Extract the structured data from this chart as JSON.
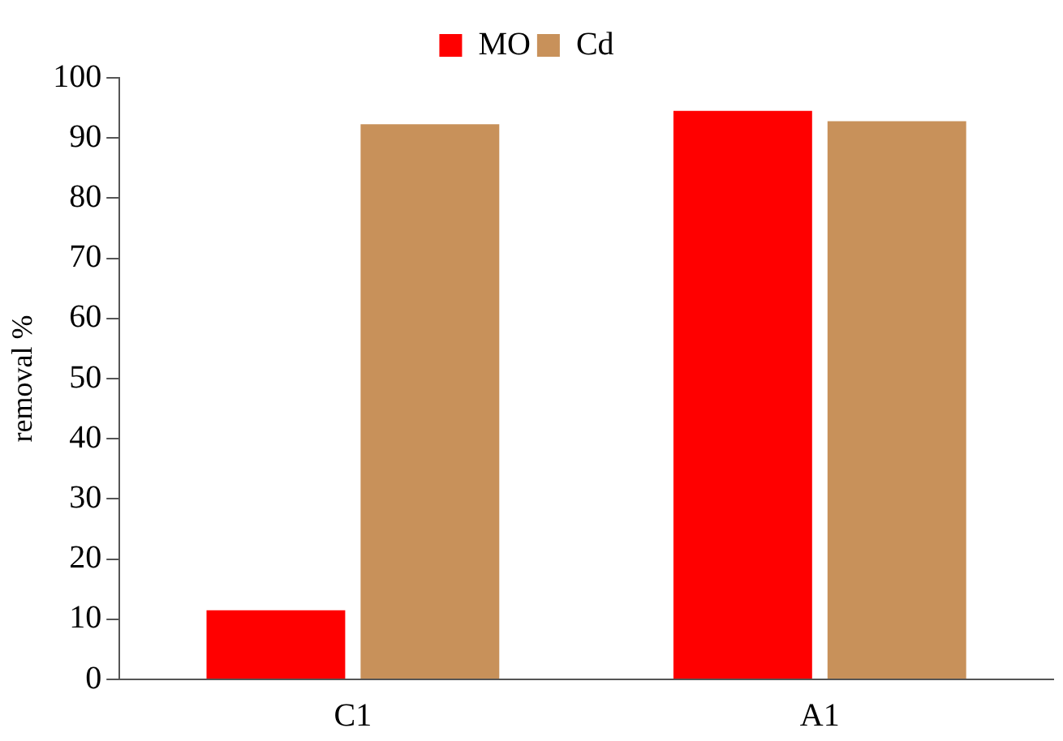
{
  "chart_data": {
    "type": "bar",
    "ylabel": "removal %",
    "categories": [
      "C1",
      "A1"
    ],
    "series": [
      {
        "name": "MO",
        "color": "#ff0000",
        "values": [
          11.5,
          94.5
        ]
      },
      {
        "name": "Cd",
        "color": "#c8915a",
        "values": [
          92.3,
          92.8
        ]
      }
    ],
    "ylim": [
      0,
      100
    ],
    "yticks": [
      0,
      10,
      20,
      30,
      40,
      50,
      60,
      70,
      80,
      90,
      100
    ],
    "grid": false,
    "legend": "top"
  }
}
